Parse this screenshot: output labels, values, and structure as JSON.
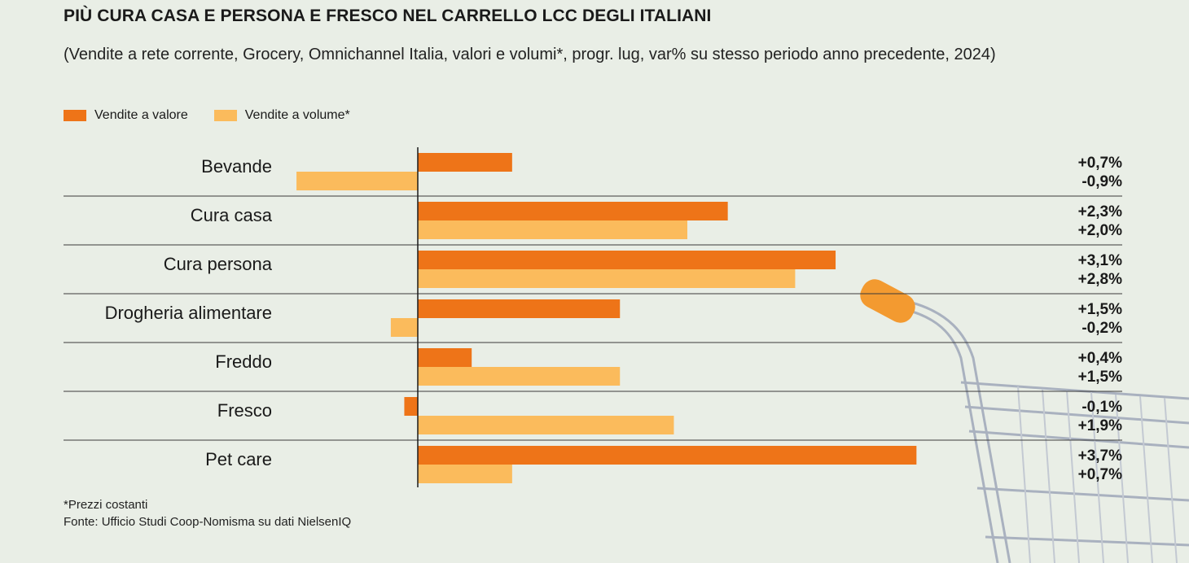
{
  "title": "PIÙ CURA CASA E PERSONA E FRESCO NEL CARRELLO LCC DEGLI ITALIANI",
  "subtitle": "(Vendite a rete corrente, Grocery, Omnichannel Italia, valori e volumi*, progr. lug, var% su stesso periodo anno precedente, 2024)",
  "legend": {
    "value_label": "Vendite a valore",
    "volume_label": "Vendite a volume*"
  },
  "footnote": {
    "note": "*Prezzi costanti",
    "source": "Fonte: Ufficio Studi Coop-Nomisma su dati NielsenIQ"
  },
  "colors": {
    "value": "#ee7418",
    "volume": "#fbbb5c",
    "background": "#e9eee6"
  },
  "chart_data": {
    "type": "bar",
    "orientation": "horizontal",
    "grid": false,
    "legend_position": "top-left",
    "xlim": [
      -2.4,
      4.0
    ],
    "categories": [
      "Bevande",
      "Cura casa",
      "Cura persona",
      "Drogheria alimentare",
      "Freddo",
      "Fresco",
      "Pet care"
    ],
    "series": [
      {
        "name": "Vendite a valore",
        "values": [
          0.7,
          2.3,
          3.1,
          1.5,
          0.4,
          -0.1,
          3.7
        ],
        "labels": [
          "+0,7%",
          "+2,3%",
          "+3,1%",
          "+1,5%",
          "+0,4%",
          "-0,1%",
          "+3,7%"
        ]
      },
      {
        "name": "Vendite a volume*",
        "values": [
          -0.9,
          2.0,
          2.8,
          -0.2,
          1.5,
          1.9,
          0.7
        ],
        "labels": [
          "-0,9%",
          "+2,0%",
          "+2,8%",
          "-0,2%",
          "+1,5%",
          "+1,9%",
          "+0,7%"
        ]
      }
    ]
  }
}
